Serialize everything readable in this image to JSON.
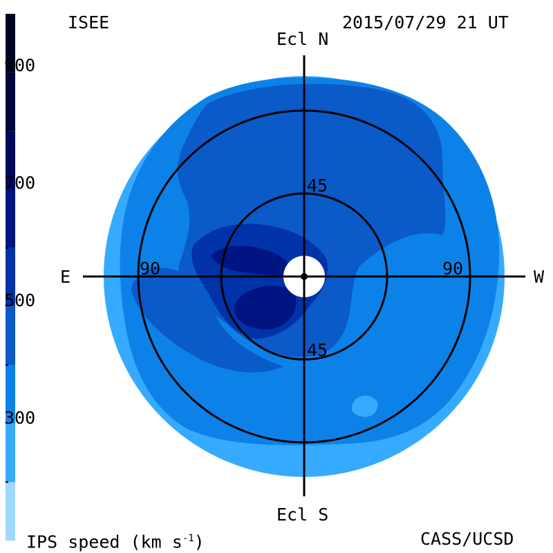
{
  "header": {
    "org_left": "ISEE",
    "timestamp": "2015/07/29 21 UT",
    "credit": "CASS/UCSD"
  },
  "colorbar": {
    "title": "IPS speed (km s",
    "title_exp": "-1",
    "title_close": ")",
    "ticks": [
      {
        "value": 900,
        "label": "900"
      },
      {
        "value": 700,
        "label": "700"
      },
      {
        "value": 500,
        "label": "500"
      },
      {
        "value": 300,
        "label": "300"
      }
    ],
    "range": [
      200,
      1100
    ],
    "bands": [
      {
        "from": 200,
        "to": 300,
        "color": "#a0d8ff"
      },
      {
        "from": 300,
        "to": 400,
        "color": "#36aaff"
      },
      {
        "from": 400,
        "to": 500,
        "color": "#0c82e8"
      },
      {
        "from": 500,
        "to": 600,
        "color": "#0a5ac8"
      },
      {
        "from": 600,
        "to": 700,
        "color": "#0032a8"
      },
      {
        "from": 700,
        "to": 800,
        "color": "#001482"
      },
      {
        "from": 800,
        "to": 900,
        "color": "#000a5a"
      },
      {
        "from": 900,
        "to": 1000,
        "color": "#00063c"
      },
      {
        "from": 1000,
        "to": 1100,
        "color": "#000424"
      }
    ]
  },
  "map": {
    "axis_labels": {
      "north": "Ecl N",
      "south": "Ecl S",
      "east": "E",
      "west": "W"
    },
    "ring_labels": {
      "r45_top": "45",
      "r45_bottom": "45",
      "r90_left": "90",
      "r90_right": "90"
    }
  },
  "chart_data": {
    "type": "heatmap",
    "projection": "polar sky map centered on Sun",
    "rings_deg": [
      45,
      90
    ],
    "color_quantity": "IPS speed (km s-1)",
    "colorbar_ticks": [
      300,
      500,
      700,
      900
    ],
    "regions": [
      {
        "area": "outer disk, mostly south and east-west rim",
        "speed_band": [
          300,
          400
        ]
      },
      {
        "area": "outer disk bulk",
        "speed_band": [
          400,
          500
        ]
      },
      {
        "area": "northern hemisphere broad region",
        "speed_band": [
          500,
          600
        ]
      },
      {
        "area": "east of Sun near ecliptic",
        "speed_band": [
          600,
          800
        ]
      },
      {
        "area": "southeast of Sun",
        "speed_band": [
          600,
          800
        ]
      }
    ]
  }
}
